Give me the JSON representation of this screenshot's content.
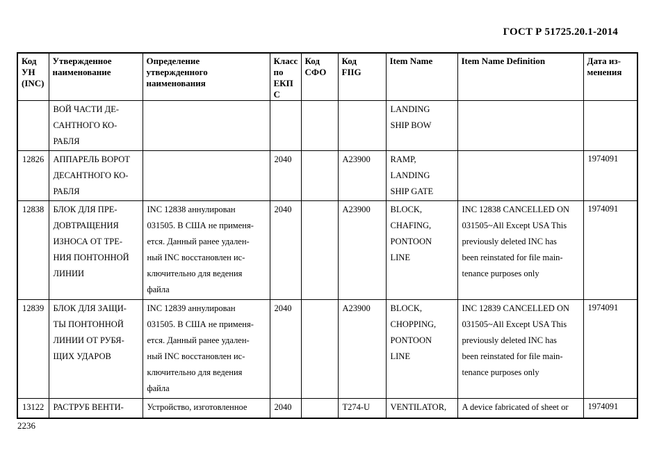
{
  "document": {
    "standard": "ГОСТ Р 51725.20.1-2014",
    "page_number": "2236"
  },
  "table": {
    "columns": [
      "Код\nУН\n(INC)",
      "Утвержденное\nнаименование",
      "Определение\nутвержденного\nнаименования",
      "Класс\nпо\nЕКП\nС",
      "Код\nСФО",
      "Код\nFIIG",
      "Item Name",
      "Item Name Definition",
      "Дата из-\nменения"
    ],
    "rows": [
      [
        "",
        "ВОЙ ЧАСТИ ДЕ-\nСАНТНОГО КО-\nРАБЛЯ",
        "",
        "",
        "",
        "",
        "LANDING\nSHIP BOW",
        "",
        ""
      ],
      [
        "12826",
        "АППАРЕЛЬ ВОРОТ\nДЕСАНТНОГО КО-\nРАБЛЯ",
        "",
        "2040",
        "",
        "A23900",
        "RAMP,\nLANDING\nSHIP GATE",
        "",
        "1974091"
      ],
      [
        "12838",
        "БЛОК ДЛЯ ПРЕ-\nДОВТРАЩЕНИЯ\nИЗНОСА ОТ ТРЕ-\nНИЯ ПОНТОННОЙ\nЛИНИИ",
        "INC 12838 аннулирован\n031505. В США не применя-\nется. Данный ранее удален-\nный INC восстановлен ис-\nключительно для ведения\nфайла",
        "2040",
        "",
        "A23900",
        "BLOCK,\nCHAFING,\nPONTOON\nLINE",
        "INC 12838 CANCELLED ON\n031505~All Except USA This\npreviously deleted INC has\nbeen reinstated for file main-\ntenance purposes only",
        "1974091"
      ],
      [
        "12839",
        "БЛОК ДЛЯ ЗАЩИ-\nТЫ ПОНТОННОЙ\nЛИНИИ ОТ РУБЯ-\nЩИХ УДАРОВ",
        "INC 12839 аннулирован\n031505. В США не применя-\nется. Данный ранее удален-\nный INC восстановлен ис-\nключительно для ведения\nфайла",
        "2040",
        "",
        "A23900",
        "BLOCK,\nCHOPPING,\nPONTOON\nLINE",
        "INC 12839 CANCELLED ON\n031505~All Except USA This\npreviously deleted INC has\nbeen reinstated for file main-\ntenance purposes only",
        "1974091"
      ],
      [
        "13122",
        "РАСТРУБ ВЕНТИ-",
        "Устройство, изготовленное",
        "2040",
        "",
        "T274-U",
        "VENTILATOR,",
        "A device fabricated of sheet or",
        "1974091"
      ]
    ]
  }
}
